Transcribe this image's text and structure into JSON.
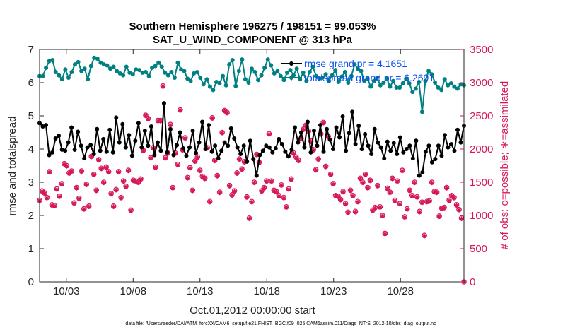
{
  "chart_data": {
    "type": "line",
    "title_line1": "Southern Hemisphere 196275 / 198151 = 99.053%",
    "title_line2": "SAT_U_WIND_COMPONENT @ 313 hPa",
    "xlabel": "Oct.01,2012 00:00:00 start",
    "ylabel_left": "rmse and totalspread",
    "ylabel_right": "# of obs: o=possible; ∗=assimilated",
    "x_ticks": [
      "10/03",
      "10/08",
      "10/13",
      "10/18",
      "10/23",
      "10/28"
    ],
    "y_left_ticks": [
      "0",
      "1",
      "2",
      "3",
      "4",
      "5",
      "6",
      "7"
    ],
    "y_right_ticks": [
      "0",
      "500",
      "1000",
      "1500",
      "2000",
      "2500",
      "3000",
      "3500"
    ],
    "xlim": [
      1,
      32.75
    ],
    "ylim_left": [
      0,
      7
    ],
    "ylim_right": [
      0,
      3500
    ],
    "colors": {
      "rmse": "#000000",
      "spread": "#008080",
      "obs": "#d6175a",
      "legend_text": "#0a50f0"
    },
    "series": [
      {
        "name": "rmse",
        "legend": "rmse grand pr = 4.1651",
        "values": [
          4.78,
          4.68,
          4.72,
          3.82,
          3.9,
          4.32,
          4.4,
          3.98,
          3.95,
          4.2,
          4.65,
          3.98,
          4.52,
          4.1,
          3.72,
          4.05,
          4.12,
          3.85,
          4.6,
          3.95,
          4.3,
          3.92,
          4.58,
          3.9,
          4.95,
          4.2,
          4.75,
          4.05,
          4.42,
          3.8,
          4.25,
          4.78,
          4.05,
          4.55,
          4.1,
          4.68,
          3.82,
          4.2,
          3.95,
          5.38,
          3.9,
          4.6,
          3.82,
          4.12,
          4.5,
          4.02,
          3.8,
          4.05,
          4.55,
          3.88,
          4.2,
          4.82,
          4.0,
          4.72,
          3.92,
          4.1,
          3.72,
          3.95,
          4.2,
          4.1,
          4.62,
          4.32,
          4.05,
          3.85,
          4.1,
          3.62,
          4.25,
          3.7,
          3.2,
          3.82,
          3.95,
          4.1,
          4.05,
          3.9,
          4.02,
          4.3,
          4.15,
          3.92,
          3.78,
          3.98,
          4.65,
          4.2,
          4.5,
          4.05,
          4.82,
          3.9,
          4.55,
          4.1,
          4.72,
          3.92,
          4.6,
          4.28,
          4.0,
          4.65,
          4.35,
          4.98,
          3.95,
          4.48,
          5.12,
          4.15,
          4.7,
          4.0,
          4.45,
          4.1,
          3.85,
          4.6,
          4.2,
          4.05,
          3.72,
          4.22,
          3.95,
          4.18,
          3.85,
          4.35,
          3.9,
          4.0,
          4.1,
          3.72,
          4.25,
          3.2,
          3.3,
          3.92,
          4.1,
          3.6,
          3.7,
          4.1,
          3.8,
          4.42,
          4.05,
          4.15,
          3.95,
          4.58,
          4.2,
          4.7
        ]
      },
      {
        "name": "totalspread",
        "legend": "totalspread grand pr = 6.2691",
        "values": [
          6.2,
          6.2,
          6.45,
          6.65,
          6.68,
          6.32,
          6.22,
          6.1,
          6.4,
          6.15,
          6.32,
          6.55,
          6.62,
          6.35,
          6.42,
          6.1,
          6.5,
          6.75,
          6.72,
          6.6,
          6.55,
          6.52,
          6.42,
          6.48,
          6.35,
          6.28,
          6.22,
          6.48,
          6.3,
          6.25,
          6.4,
          6.38,
          6.3,
          6.32,
          6.2,
          6.45,
          6.5,
          6.6,
          6.48,
          6.3,
          6.22,
          6.32,
          6.15,
          6.6,
          6.4,
          6.35,
          6.12,
          6.05,
          6.28,
          6.32,
          6.15,
          5.95,
          6.1,
          5.88,
          5.78,
          6.02,
          5.98,
          6.2,
          5.92,
          6.55,
          6.68,
          5.9,
          6.35,
          6.7,
          6.1,
          6.0,
          6.42,
          6.32,
          6.08,
          6.22,
          6.45,
          6.7,
          6.52,
          6.28,
          6.35,
          6.2,
          6.08,
          6.3,
          6.38,
          6.22,
          6.42,
          6.1,
          6.3,
          6.05,
          6.32,
          6.48,
          6.2,
          6.12,
          6.15,
          6.25,
          6.05,
          6.22,
          6.38,
          6.02,
          6.18,
          6.32,
          6.0,
          6.2,
          6.55,
          6.42,
          6.35,
          6.05,
          6.12,
          5.88,
          6.05,
          6.15,
          5.92,
          6.0,
          6.12,
          5.88,
          6.05,
          5.85,
          5.85,
          5.98,
          6.12,
          5.98,
          5.72,
          5.82,
          6.02,
          5.12,
          6.05,
          6.35,
          6.25,
          6.0,
          5.85,
          5.78,
          6.1,
          5.92,
          5.98,
          5.88,
          5.82,
          5.95,
          5.92
        ]
      },
      {
        "name": "obs_possible",
        "values": [
          1230,
          1370,
          1340,
          1270,
          1660,
          1160,
          1150,
          1400,
          1290,
          1480,
          1780,
          1750,
          1640,
          1670,
          1190,
          1420,
          1260,
          1670,
          1100,
          1470,
          1140,
          1890,
          1620,
          1380,
          1840,
          1710,
          1500,
          1730,
          1660,
          1330,
          1140,
          1390,
          1660,
          1270,
          1520,
          1440,
          1680,
          1080,
          1530,
          1520,
          1500,
          1550,
          1980,
          2510,
          2460,
          1870,
          2020,
          1730,
          2430,
          2430,
          2950,
          1870,
          1940,
          2370,
          1420,
          1940,
          1770,
          2590,
          1990,
          2170,
          1570,
          1720,
          1380,
          1820,
          1880,
          1680,
          1590,
          1560,
          2020,
          1210,
          2470,
          1830,
          1600,
          1350,
          2250,
          2580,
          2550,
          1450,
          1310,
          1370,
          1640,
          1850,
          1700,
          1810,
          1280,
          960,
          1210,
          1500,
          1920,
          1800,
          1370,
          1420,
          1520,
          2230,
          1520,
          1380,
          1360,
          1300,
          1460,
          1270,
          1130,
          1400,
          1550,
          1940,
          1880,
          1830,
          2160,
          2300,
          2360,
          2270,
          2120,
          1990,
          1690,
          1850,
          2230,
          2400,
          1740,
          2190,
          1620,
          1480,
          1300,
          1290,
          1240,
          1360,
          1180,
          1050,
          1380,
          1300,
          1060,
          1210,
          1560,
          1500,
          1620,
          1420,
          1530,
          1080,
          1120,
          1450,
          1130,
          1000,
          730,
          1410,
          1350,
          1560,
          1230,
          1520,
          1180,
          1680,
          980,
          1100,
          1380,
          1300,
          1500,
          1280,
          1060,
          1200,
          700,
          1210,
          1220,
          1500,
          1360,
          1350,
          990,
          1110,
          1120,
          1420,
          1230,
          1300,
          1270,
          1160,
          1090,
          960,
          0
        ]
      },
      {
        "name": "obs_assimilated",
        "values": [
          1220,
          1360,
          1330,
          1260,
          1650,
          1150,
          1140,
          1390,
          1280,
          1470,
          1770,
          1740,
          1630,
          1660,
          1180,
          1410,
          1250,
          1660,
          1090,
          1460,
          1130,
          1880,
          1610,
          1370,
          1830,
          1700,
          1490,
          1720,
          1650,
          1320,
          1130,
          1380,
          1650,
          1260,
          1510,
          1430,
          1670,
          1070,
          1520,
          1510,
          1490,
          1540,
          1970,
          2500,
          2450,
          1860,
          2010,
          1720,
          2420,
          2420,
          2940,
          1860,
          1930,
          2360,
          1410,
          1930,
          1760,
          2580,
          1980,
          2160,
          1560,
          1710,
          1370,
          1810,
          1870,
          1670,
          1580,
          1550,
          2010,
          1200,
          2460,
          1820,
          1590,
          1340,
          2240,
          2570,
          2540,
          1440,
          1300,
          1360,
          1630,
          1840,
          1690,
          1800,
          1270,
          950,
          1200,
          1490,
          1910,
          1790,
          1360,
          1410,
          1510,
          2220,
          1510,
          1370,
          1350,
          1290,
          1450,
          1260,
          1120,
          1390,
          1540,
          1930,
          1870,
          1820,
          2150,
          2290,
          2350,
          2260,
          2110,
          1980,
          1680,
          1840,
          2220,
          2390,
          1730,
          2180,
          1610,
          1470,
          1290,
          1280,
          1230,
          1350,
          1170,
          1040,
          1370,
          1290,
          1050,
          1200,
          1550,
          1490,
          1610,
          1410,
          1520,
          1070,
          1110,
          1440,
          1120,
          990,
          720,
          1400,
          1340,
          1550,
          1220,
          1510,
          1170,
          1670,
          970,
          1090,
          1370,
          1290,
          1490,
          1270,
          1050,
          1190,
          690,
          1200,
          1210,
          1490,
          1350,
          1340,
          980,
          1100,
          1110,
          1410,
          1220,
          1290,
          1260,
          1150,
          1080,
          950,
          0
        ]
      }
    ]
  },
  "footer": "data file: /Users/raeder/DAI/ATM_forcXX/CAM6_setup/f.e21.FHIST_BGC.f09_025.CAM6assim.011/Diags_NTrS_2012-10/obs_diag_output.nc"
}
